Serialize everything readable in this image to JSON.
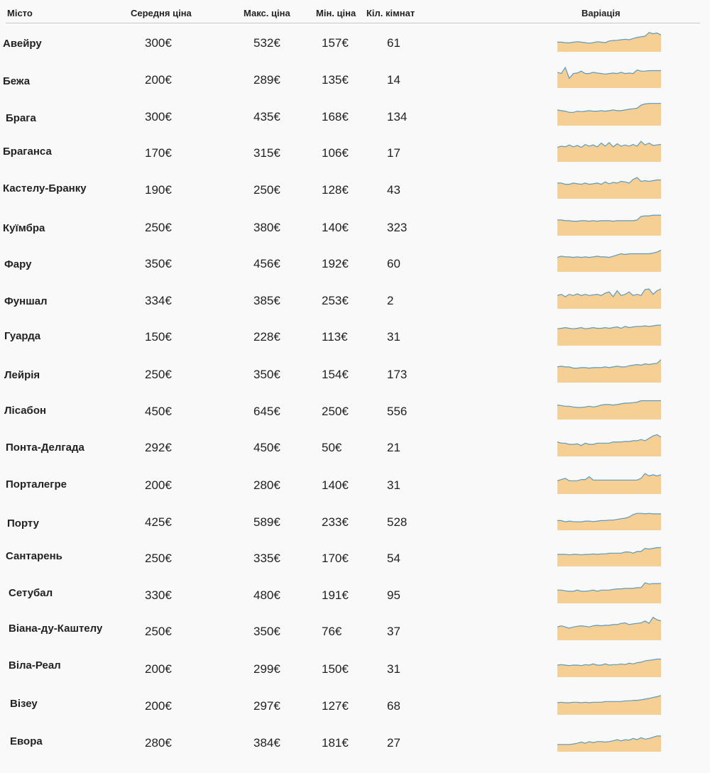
{
  "columns": {
    "city": "Місто",
    "avg": "Середня ціна",
    "max": "Макс. ціна",
    "min": "Мін. ціна",
    "rooms": "Кіл. кімнат",
    "variation": "Варіація"
  },
  "colors": {
    "area_fill": "#f5cf94",
    "line": "#5b9bc1",
    "text": "#222222"
  },
  "rows": [
    {
      "city": "Авейру",
      "avg": "300€",
      "max": "532€",
      "min": "157€",
      "rooms": "61"
    },
    {
      "city": "Бежа",
      "avg": "200€",
      "max": "289€",
      "min": "135€",
      "rooms": "14"
    },
    {
      "city": "Брага",
      "avg": "300€",
      "max": "435€",
      "min": "168€",
      "rooms": "134"
    },
    {
      "city": "Браганса",
      "avg": "170€",
      "max": "315€",
      "min": "106€",
      "rooms": "17"
    },
    {
      "city": "Кастелу-Бранку",
      "avg": "190€",
      "max": "250€",
      "min": "128€",
      "rooms": "43"
    },
    {
      "city": "Куїмбра",
      "avg": "250€",
      "max": "380€",
      "min": "140€",
      "rooms": "323"
    },
    {
      "city": "Фару",
      "avg": "350€",
      "max": "456€",
      "min": "192€",
      "rooms": "60"
    },
    {
      "city": "Фуншал",
      "avg": "334€",
      "max": "385€",
      "min": "253€",
      "rooms": "2"
    },
    {
      "city": "Гуарда",
      "avg": "150€",
      "max": "228€",
      "min": "113€",
      "rooms": "31"
    },
    {
      "city": "Лейрія",
      "avg": "250€",
      "max": "350€",
      "min": "154€",
      "rooms": "173"
    },
    {
      "city": "Лісабон",
      "avg": "450€",
      "max": "645€",
      "min": "250€",
      "rooms": "556"
    },
    {
      "city": "Понта-Делгада",
      "avg": "292€",
      "max": "450€",
      "min": "50€",
      "rooms": "21"
    },
    {
      "city": "Порталегре",
      "avg": "200€",
      "max": "280€",
      "min": "140€",
      "rooms": "31"
    },
    {
      "city": "Порту",
      "avg": "425€",
      "max": "589€",
      "min": "233€",
      "rooms": "528"
    },
    {
      "city": "Сантарень",
      "avg": "250€",
      "max": "335€",
      "min": "170€",
      "rooms": "54"
    },
    {
      "city": "Сетубал",
      "avg": "330€",
      "max": "480€",
      "min": "191€",
      "rooms": "95"
    },
    {
      "city": "Віана-ду-Каштелу",
      "avg": "250€",
      "max": "350€",
      "min": "76€",
      "rooms": "37"
    },
    {
      "city": "Віла-Реал",
      "avg": "200€",
      "max": "299€",
      "min": "150€",
      "rooms": "31"
    },
    {
      "city": "Візеу",
      "avg": "200€",
      "max": "297€",
      "min": "127€",
      "rooms": "68"
    },
    {
      "city": "Евора",
      "avg": "280€",
      "max": "384€",
      "min": "181€",
      "rooms": "27"
    }
  ],
  "chart_data": {
    "type": "table",
    "columns": [
      "Місто",
      "Середня ціна",
      "Макс. ціна",
      "Мін. ціна",
      "Кіл. кімнат",
      "Варіація"
    ],
    "sparkline_type": "area",
    "sparklines": [
      [
        0.4,
        0.4,
        0.38,
        0.37,
        0.4,
        0.42,
        0.4,
        0.38,
        0.36,
        0.38,
        0.42,
        0.4,
        0.38,
        0.45,
        0.47,
        0.48,
        0.5,
        0.52,
        0.5,
        0.55,
        0.6,
        0.62,
        0.65,
        0.8,
        0.75,
        0.78,
        0.7
      ],
      [
        0.65,
        0.6,
        0.85,
        0.4,
        0.6,
        0.62,
        0.7,
        0.6,
        0.6,
        0.65,
        0.62,
        0.6,
        0.58,
        0.6,
        0.62,
        0.6,
        0.65,
        0.6,
        0.62,
        0.6,
        0.75,
        0.7,
        0.7,
        0.72,
        0.72,
        0.72,
        0.72
      ],
      [
        0.65,
        0.62,
        0.6,
        0.55,
        0.55,
        0.6,
        0.58,
        0.6,
        0.62,
        0.6,
        0.6,
        0.62,
        0.6,
        0.62,
        0.65,
        0.62,
        0.62,
        0.65,
        0.68,
        0.7,
        0.72,
        0.85,
        0.9,
        0.92,
        0.92,
        0.92,
        0.92
      ],
      [
        0.6,
        0.65,
        0.62,
        0.7,
        0.62,
        0.68,
        0.6,
        0.72,
        0.65,
        0.7,
        0.62,
        0.78,
        0.65,
        0.8,
        0.62,
        0.75,
        0.65,
        0.7,
        0.65,
        0.72,
        0.65,
        0.85,
        0.7,
        0.78,
        0.68,
        0.7,
        0.72
      ],
      [
        0.65,
        0.65,
        0.6,
        0.6,
        0.65,
        0.62,
        0.6,
        0.65,
        0.6,
        0.62,
        0.65,
        0.6,
        0.7,
        0.62,
        0.68,
        0.65,
        0.72,
        0.7,
        0.65,
        0.8,
        0.88,
        0.72,
        0.75,
        0.72,
        0.75,
        0.78,
        0.78
      ],
      [
        0.65,
        0.65,
        0.62,
        0.62,
        0.6,
        0.6,
        0.62,
        0.62,
        0.6,
        0.62,
        0.6,
        0.62,
        0.62,
        0.62,
        0.6,
        0.62,
        0.62,
        0.62,
        0.62,
        0.62,
        0.65,
        0.8,
        0.82,
        0.82,
        0.85,
        0.85,
        0.85
      ],
      [
        0.6,
        0.65,
        0.62,
        0.62,
        0.6,
        0.62,
        0.6,
        0.62,
        0.6,
        0.62,
        0.65,
        0.62,
        0.62,
        0.6,
        0.65,
        0.7,
        0.75,
        0.72,
        0.75,
        0.75,
        0.75,
        0.75,
        0.75,
        0.75,
        0.78,
        0.82,
        0.9
      ],
      [
        0.55,
        0.6,
        0.5,
        0.6,
        0.55,
        0.62,
        0.55,
        0.6,
        0.55,
        0.58,
        0.6,
        0.55,
        0.65,
        0.7,
        0.5,
        0.75,
        0.55,
        0.6,
        0.7,
        0.55,
        0.6,
        0.55,
        0.8,
        0.82,
        0.6,
        0.75,
        0.82
      ],
      [
        0.7,
        0.72,
        0.75,
        0.72,
        0.7,
        0.72,
        0.75,
        0.7,
        0.72,
        0.75,
        0.72,
        0.72,
        0.75,
        0.72,
        0.75,
        0.78,
        0.72,
        0.8,
        0.75,
        0.78,
        0.8,
        0.8,
        0.82,
        0.8,
        0.82,
        0.85,
        0.85
      ],
      [
        0.65,
        0.68,
        0.65,
        0.65,
        0.6,
        0.6,
        0.62,
        0.62,
        0.6,
        0.62,
        0.62,
        0.62,
        0.65,
        0.62,
        0.65,
        0.68,
        0.65,
        0.65,
        0.7,
        0.72,
        0.75,
        0.72,
        0.78,
        0.75,
        0.78,
        0.8,
        0.95
      ],
      [
        0.6,
        0.58,
        0.55,
        0.55,
        0.52,
        0.5,
        0.5,
        0.52,
        0.55,
        0.52,
        0.55,
        0.6,
        0.62,
        0.62,
        0.6,
        0.62,
        0.65,
        0.68,
        0.68,
        0.7,
        0.72,
        0.78,
        0.78,
        0.78,
        0.78,
        0.78,
        0.78
      ],
      [
        0.6,
        0.55,
        0.55,
        0.5,
        0.5,
        0.52,
        0.45,
        0.55,
        0.5,
        0.5,
        0.55,
        0.55,
        0.55,
        0.55,
        0.6,
        0.6,
        0.6,
        0.62,
        0.62,
        0.65,
        0.65,
        0.7,
        0.65,
        0.75,
        0.85,
        0.9,
        0.8
      ],
      [
        0.55,
        0.6,
        0.65,
        0.55,
        0.55,
        0.55,
        0.6,
        0.6,
        0.72,
        0.58,
        0.58,
        0.58,
        0.58,
        0.58,
        0.58,
        0.58,
        0.58,
        0.58,
        0.58,
        0.58,
        0.58,
        0.65,
        0.85,
        0.75,
        0.8,
        0.75,
        0.8
      ],
      [
        0.4,
        0.4,
        0.35,
        0.38,
        0.36,
        0.35,
        0.35,
        0.38,
        0.38,
        0.36,
        0.38,
        0.4,
        0.4,
        0.42,
        0.42,
        0.45,
        0.48,
        0.5,
        0.55,
        0.65,
        0.7,
        0.7,
        0.68,
        0.7,
        0.68,
        0.68,
        0.68
      ],
      [
        0.5,
        0.5,
        0.5,
        0.48,
        0.5,
        0.5,
        0.48,
        0.5,
        0.5,
        0.52,
        0.5,
        0.52,
        0.52,
        0.55,
        0.55,
        0.55,
        0.55,
        0.6,
        0.6,
        0.55,
        0.62,
        0.62,
        0.75,
        0.72,
        0.75,
        0.78,
        0.78
      ],
      [
        0.55,
        0.55,
        0.52,
        0.5,
        0.5,
        0.55,
        0.5,
        0.5,
        0.52,
        0.55,
        0.5,
        0.55,
        0.55,
        0.55,
        0.58,
        0.6,
        0.6,
        0.62,
        0.62,
        0.62,
        0.65,
        0.65,
        0.85,
        0.8,
        0.82,
        0.82,
        0.82
      ],
      [
        0.55,
        0.6,
        0.55,
        0.5,
        0.55,
        0.58,
        0.6,
        0.58,
        0.55,
        0.6,
        0.62,
        0.6,
        0.62,
        0.62,
        0.65,
        0.65,
        0.7,
        0.72,
        0.65,
        0.68,
        0.7,
        0.72,
        0.8,
        0.7,
        0.95,
        0.85,
        0.8
      ],
      [
        0.5,
        0.52,
        0.5,
        0.48,
        0.5,
        0.5,
        0.48,
        0.52,
        0.5,
        0.55,
        0.5,
        0.5,
        0.55,
        0.5,
        0.52,
        0.52,
        0.55,
        0.52,
        0.58,
        0.55,
        0.6,
        0.62,
        0.68,
        0.7,
        0.72,
        0.75,
        0.75
      ],
      [
        0.5,
        0.52,
        0.5,
        0.5,
        0.52,
        0.52,
        0.5,
        0.52,
        0.5,
        0.52,
        0.52,
        0.52,
        0.55,
        0.55,
        0.55,
        0.55,
        0.55,
        0.58,
        0.58,
        0.6,
        0.6,
        0.62,
        0.65,
        0.68,
        0.72,
        0.75,
        0.8
      ],
      [
        0.3,
        0.3,
        0.3,
        0.3,
        0.32,
        0.35,
        0.4,
        0.35,
        0.42,
        0.38,
        0.42,
        0.42,
        0.4,
        0.42,
        0.45,
        0.5,
        0.45,
        0.5,
        0.48,
        0.55,
        0.5,
        0.58,
        0.52,
        0.55,
        0.6,
        0.65,
        0.65
      ]
    ]
  }
}
